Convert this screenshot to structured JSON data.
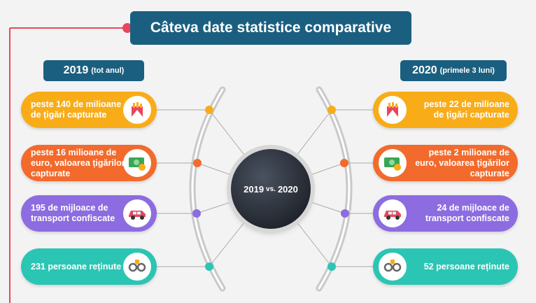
{
  "title": "Câteva date statistice comparative",
  "left_year": {
    "year": "2019",
    "note": "(tot anul)"
  },
  "right_year": {
    "year": "2020",
    "note": "(primele 3 luni)"
  },
  "center": {
    "a": "2019",
    "vs": "vs.",
    "b": "2020"
  },
  "colors": {
    "yellow": "#f8ac18",
    "orange": "#f26a2c",
    "purple": "#8c6ce0",
    "teal": "#2bc5b4",
    "navy": "#1b5f80",
    "accent_red": "#e8465a"
  },
  "left_items": [
    {
      "text": "peste 140 de milioane\nde țigări capturate",
      "color": "#f8ac18",
      "icon": "cigarettes-icon"
    },
    {
      "text": "peste 16 milioane de\neuro, valoarea țigărilor\ncapturate",
      "color": "#f26a2c",
      "icon": "money-icon"
    },
    {
      "text": "195 de mijloace de\ntransport confiscate",
      "color": "#8c6ce0",
      "icon": "car-icon"
    },
    {
      "text": "231 persoane reținute",
      "color": "#2bc5b4",
      "icon": "handcuffs-icon"
    }
  ],
  "right_items": [
    {
      "text": "peste 22 de milioane\nde țigări capturate",
      "color": "#f8ac18",
      "icon": "cigarettes-icon"
    },
    {
      "text": "peste 2 milioane de\neuro, valoarea țigărilor\ncapturate",
      "color": "#f26a2c",
      "icon": "money-icon"
    },
    {
      "text": "24 de mijloace de\ntransport confiscate",
      "color": "#8c6ce0",
      "icon": "car-icon"
    },
    {
      "text": "52 persoane reținute",
      "color": "#2bc5b4",
      "icon": "handcuffs-icon"
    }
  ]
}
